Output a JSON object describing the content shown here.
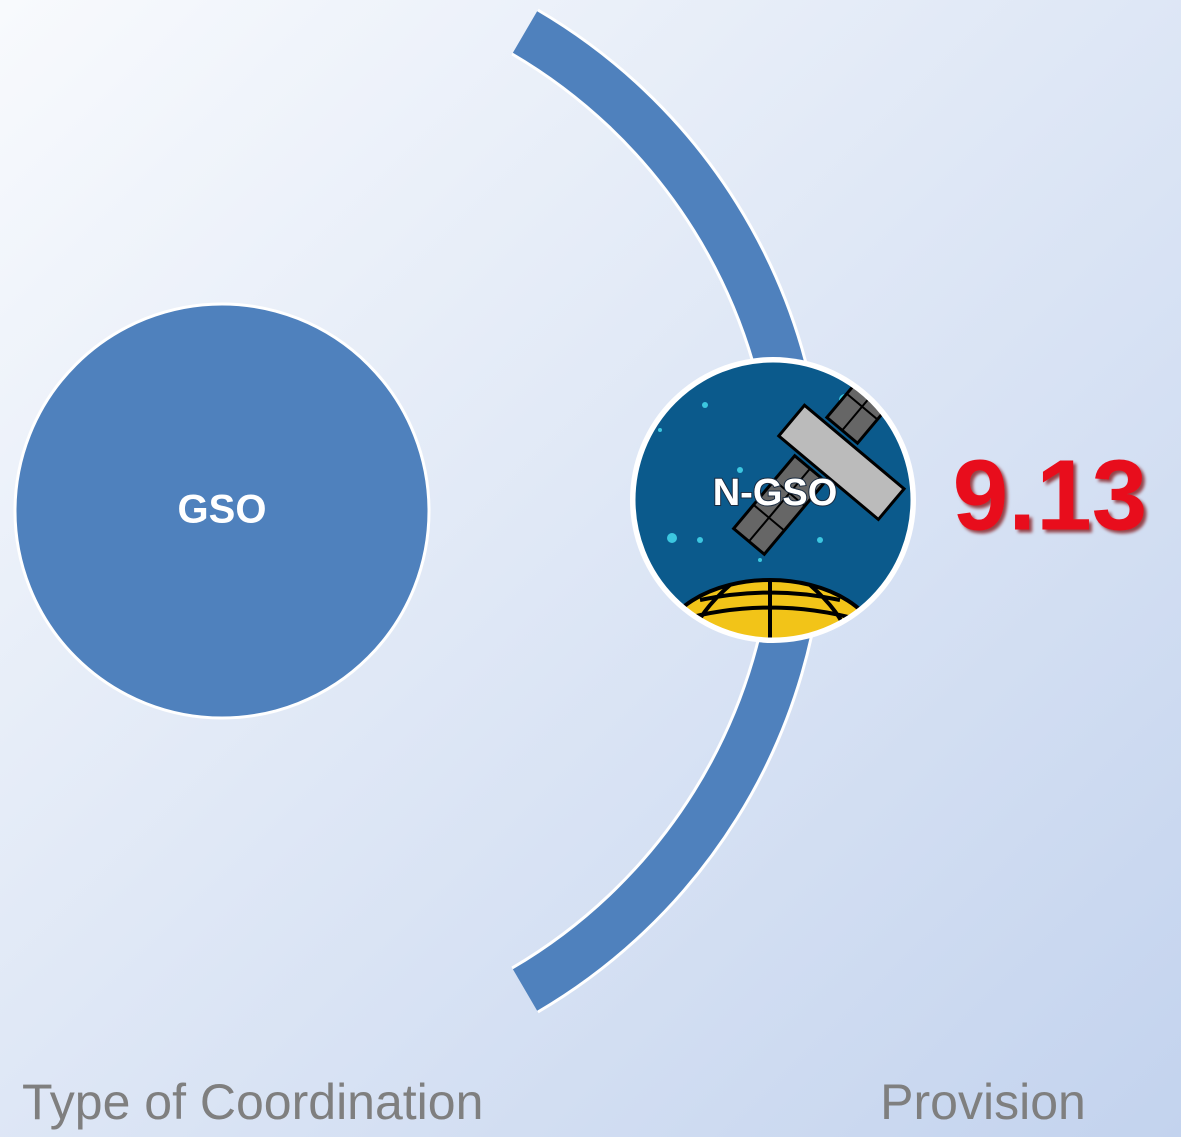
{
  "diagram": {
    "nodes": [
      {
        "label": "GSO"
      },
      {
        "label": "N-GSO"
      }
    ],
    "provision": "9.13",
    "footer": {
      "left": "Type of Coordination",
      "right": "Provision"
    }
  }
}
